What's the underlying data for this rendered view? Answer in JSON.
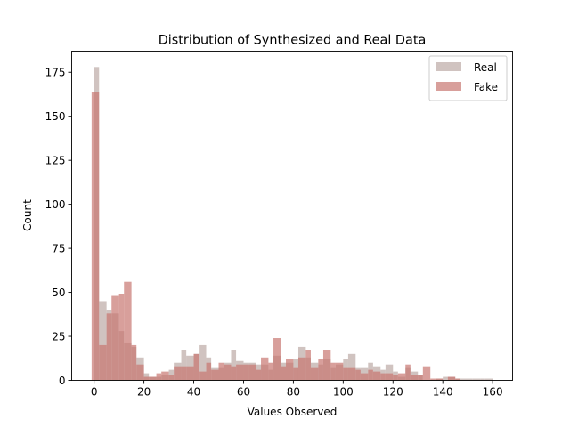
{
  "chart_data": {
    "type": "histogram",
    "title": "Distribution of Synthesized and Real Data",
    "xlabel": "Values Observed",
    "ylabel": "Count",
    "xlim": [
      -9,
      168
    ],
    "ylim": [
      0,
      187
    ],
    "xticks": [
      0,
      20,
      40,
      60,
      80,
      100,
      120,
      140,
      160
    ],
    "yticks": [
      0,
      25,
      50,
      75,
      100,
      125,
      150,
      175
    ],
    "legend_position": "top-right",
    "series": [
      {
        "name": "Real",
        "color": "#bca9a5",
        "bins": [
          {
            "x0": 0,
            "x1": 2,
            "count": 178
          },
          {
            "x0": 2,
            "x1": 5,
            "count": 45
          },
          {
            "x0": 5,
            "x1": 7,
            "count": 40
          },
          {
            "x0": 7,
            "x1": 10,
            "count": 38
          },
          {
            "x0": 10,
            "x1": 12,
            "count": 28
          },
          {
            "x0": 12,
            "x1": 15,
            "count": 21
          },
          {
            "x0": 15,
            "x1": 17,
            "count": 19
          },
          {
            "x0": 17,
            "x1": 20,
            "count": 13
          },
          {
            "x0": 20,
            "x1": 22,
            "count": 4
          },
          {
            "x0": 22,
            "x1": 25,
            "count": 2
          },
          {
            "x0": 25,
            "x1": 27,
            "count": 2
          },
          {
            "x0": 27,
            "x1": 30,
            "count": 3
          },
          {
            "x0": 30,
            "x1": 32,
            "count": 6
          },
          {
            "x0": 32,
            "x1": 35,
            "count": 10
          },
          {
            "x0": 35,
            "x1": 37,
            "count": 17
          },
          {
            "x0": 37,
            "x1": 40,
            "count": 14
          },
          {
            "x0": 40,
            "x1": 42,
            "count": 15
          },
          {
            "x0": 42,
            "x1": 45,
            "count": 20
          },
          {
            "x0": 45,
            "x1": 47,
            "count": 13
          },
          {
            "x0": 47,
            "x1": 50,
            "count": 7
          },
          {
            "x0": 50,
            "x1": 52,
            "count": 7
          },
          {
            "x0": 52,
            "x1": 55,
            "count": 10
          },
          {
            "x0": 55,
            "x1": 57,
            "count": 17
          },
          {
            "x0": 57,
            "x1": 60,
            "count": 11
          },
          {
            "x0": 60,
            "x1": 62,
            "count": 10
          },
          {
            "x0": 62,
            "x1": 65,
            "count": 10
          },
          {
            "x0": 65,
            "x1": 67,
            "count": 9
          },
          {
            "x0": 67,
            "x1": 70,
            "count": 9
          },
          {
            "x0": 70,
            "x1": 72,
            "count": 6
          },
          {
            "x0": 72,
            "x1": 75,
            "count": 14
          },
          {
            "x0": 75,
            "x1": 77,
            "count": 10
          },
          {
            "x0": 77,
            "x1": 80,
            "count": 10
          },
          {
            "x0": 80,
            "x1": 82,
            "count": 12
          },
          {
            "x0": 82,
            "x1": 85,
            "count": 19
          },
          {
            "x0": 85,
            "x1": 87,
            "count": 13
          },
          {
            "x0": 87,
            "x1": 90,
            "count": 10
          },
          {
            "x0": 90,
            "x1": 92,
            "count": 9
          },
          {
            "x0": 92,
            "x1": 95,
            "count": 12
          },
          {
            "x0": 95,
            "x1": 97,
            "count": 7
          },
          {
            "x0": 97,
            "x1": 100,
            "count": 9
          },
          {
            "x0": 100,
            "x1": 102,
            "count": 12
          },
          {
            "x0": 102,
            "x1": 105,
            "count": 15
          },
          {
            "x0": 105,
            "x1": 107,
            "count": 7
          },
          {
            "x0": 107,
            "x1": 110,
            "count": 7
          },
          {
            "x0": 110,
            "x1": 112,
            "count": 10
          },
          {
            "x0": 112,
            "x1": 115,
            "count": 8
          },
          {
            "x0": 115,
            "x1": 117,
            "count": 6
          },
          {
            "x0": 117,
            "x1": 120,
            "count": 9
          },
          {
            "x0": 120,
            "x1": 122,
            "count": 5
          },
          {
            "x0": 122,
            "x1": 125,
            "count": 2
          },
          {
            "x0": 125,
            "x1": 127,
            "count": 7
          },
          {
            "x0": 127,
            "x1": 130,
            "count": 5
          },
          {
            "x0": 130,
            "x1": 132,
            "count": 3
          },
          {
            "x0": 132,
            "x1": 135,
            "count": 0
          },
          {
            "x0": 135,
            "x1": 137,
            "count": 0
          },
          {
            "x0": 137,
            "x1": 140,
            "count": 1
          },
          {
            "x0": 140,
            "x1": 142,
            "count": 2
          },
          {
            "x0": 142,
            "x1": 145,
            "count": 2
          },
          {
            "x0": 145,
            "x1": 147,
            "count": 1
          },
          {
            "x0": 147,
            "x1": 150,
            "count": 1
          },
          {
            "x0": 150,
            "x1": 152,
            "count": 1
          },
          {
            "x0": 152,
            "x1": 155,
            "count": 1
          },
          {
            "x0": 155,
            "x1": 157,
            "count": 1
          },
          {
            "x0": 157,
            "x1": 160,
            "count": 1
          }
        ]
      },
      {
        "name": "Fake",
        "color": "#c87670",
        "bins": [
          {
            "x0": -1,
            "x1": 2,
            "count": 164
          },
          {
            "x0": 2,
            "x1": 5,
            "count": 20
          },
          {
            "x0": 5,
            "x1": 7,
            "count": 38
          },
          {
            "x0": 7,
            "x1": 10,
            "count": 48
          },
          {
            "x0": 10,
            "x1": 12,
            "count": 49
          },
          {
            "x0": 12,
            "x1": 15,
            "count": 56
          },
          {
            "x0": 15,
            "x1": 17,
            "count": 20
          },
          {
            "x0": 17,
            "x1": 20,
            "count": 9
          },
          {
            "x0": 20,
            "x1": 22,
            "count": 2
          },
          {
            "x0": 22,
            "x1": 25,
            "count": 2
          },
          {
            "x0": 25,
            "x1": 27,
            "count": 4
          },
          {
            "x0": 27,
            "x1": 30,
            "count": 5
          },
          {
            "x0": 30,
            "x1": 32,
            "count": 3
          },
          {
            "x0": 32,
            "x1": 35,
            "count": 8
          },
          {
            "x0": 35,
            "x1": 37,
            "count": 8
          },
          {
            "x0": 37,
            "x1": 40,
            "count": 8
          },
          {
            "x0": 40,
            "x1": 42,
            "count": 15
          },
          {
            "x0": 42,
            "x1": 45,
            "count": 5
          },
          {
            "x0": 45,
            "x1": 47,
            "count": 10
          },
          {
            "x0": 47,
            "x1": 50,
            "count": 6
          },
          {
            "x0": 50,
            "x1": 52,
            "count": 10
          },
          {
            "x0": 52,
            "x1": 55,
            "count": 9
          },
          {
            "x0": 55,
            "x1": 57,
            "count": 8
          },
          {
            "x0": 57,
            "x1": 60,
            "count": 9
          },
          {
            "x0": 60,
            "x1": 62,
            "count": 9
          },
          {
            "x0": 62,
            "x1": 65,
            "count": 9
          },
          {
            "x0": 65,
            "x1": 67,
            "count": 6
          },
          {
            "x0": 67,
            "x1": 70,
            "count": 13
          },
          {
            "x0": 70,
            "x1": 72,
            "count": 10
          },
          {
            "x0": 72,
            "x1": 75,
            "count": 24
          },
          {
            "x0": 75,
            "x1": 77,
            "count": 8
          },
          {
            "x0": 77,
            "x1": 80,
            "count": 12
          },
          {
            "x0": 80,
            "x1": 82,
            "count": 7
          },
          {
            "x0": 82,
            "x1": 85,
            "count": 13
          },
          {
            "x0": 85,
            "x1": 87,
            "count": 17
          },
          {
            "x0": 87,
            "x1": 90,
            "count": 7
          },
          {
            "x0": 90,
            "x1": 92,
            "count": 12
          },
          {
            "x0": 92,
            "x1": 95,
            "count": 17
          },
          {
            "x0": 95,
            "x1": 97,
            "count": 10
          },
          {
            "x0": 97,
            "x1": 100,
            "count": 10
          },
          {
            "x0": 100,
            "x1": 102,
            "count": 7
          },
          {
            "x0": 102,
            "x1": 105,
            "count": 7
          },
          {
            "x0": 105,
            "x1": 107,
            "count": 6
          },
          {
            "x0": 107,
            "x1": 110,
            "count": 4
          },
          {
            "x0": 110,
            "x1": 112,
            "count": 6
          },
          {
            "x0": 112,
            "x1": 115,
            "count": 5
          },
          {
            "x0": 115,
            "x1": 117,
            "count": 4
          },
          {
            "x0": 117,
            "x1": 120,
            "count": 4
          },
          {
            "x0": 120,
            "x1": 122,
            "count": 3
          },
          {
            "x0": 122,
            "x1": 125,
            "count": 4
          },
          {
            "x0": 125,
            "x1": 127,
            "count": 9
          },
          {
            "x0": 127,
            "x1": 130,
            "count": 3
          },
          {
            "x0": 130,
            "x1": 132,
            "count": 3
          },
          {
            "x0": 132,
            "x1": 135,
            "count": 8
          },
          {
            "x0": 135,
            "x1": 137,
            "count": 1
          },
          {
            "x0": 137,
            "x1": 140,
            "count": 1
          },
          {
            "x0": 140,
            "x1": 142,
            "count": 0
          },
          {
            "x0": 142,
            "x1": 145,
            "count": 2
          },
          {
            "x0": 145,
            "x1": 147,
            "count": 1
          }
        ]
      }
    ]
  }
}
